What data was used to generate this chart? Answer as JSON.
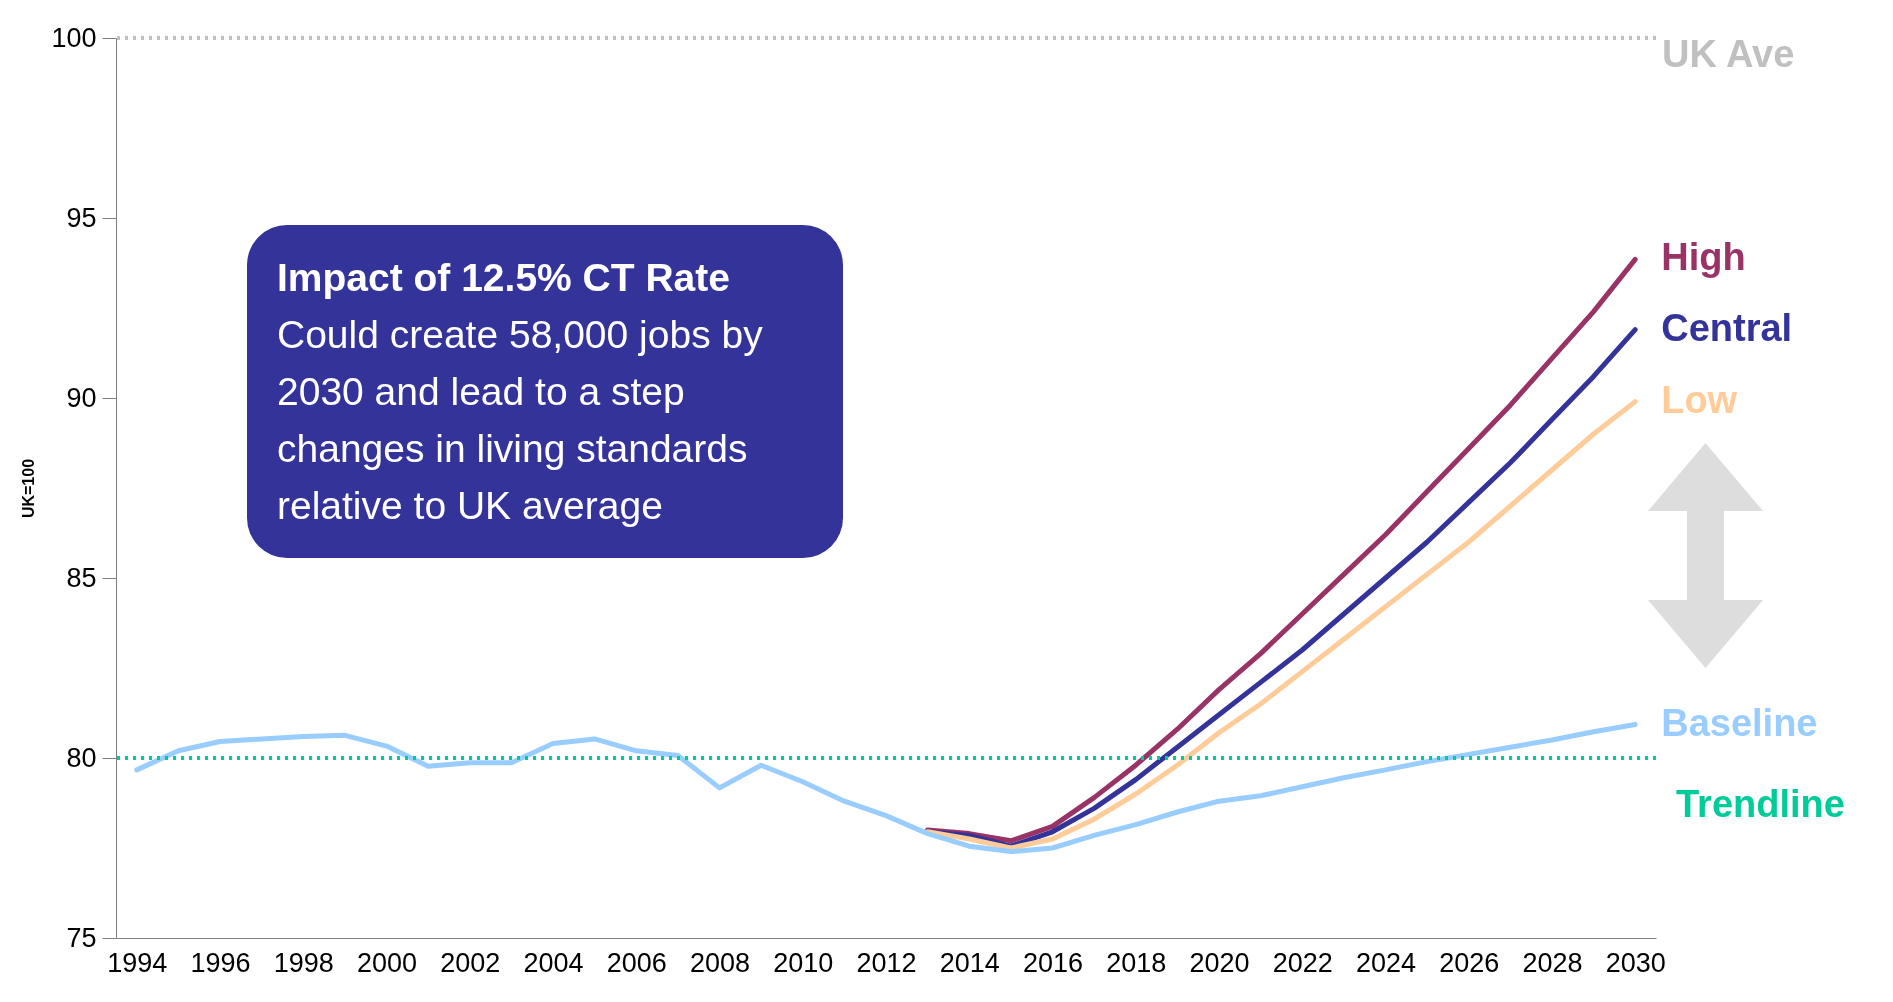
{
  "chart_data": {
    "type": "line",
    "ylabel": "UK=100",
    "categories": [
      "1994",
      null,
      "1996",
      null,
      "1998",
      null,
      "2000",
      null,
      "2002",
      null,
      "2004",
      null,
      "2006",
      null,
      "2008",
      null,
      "2010",
      null,
      "2012",
      null,
      "2014",
      null,
      "2016",
      null,
      "2018",
      null,
      "2020",
      null,
      "2022",
      null,
      "2024",
      null,
      "2026",
      null,
      "2028",
      null,
      "2030"
    ],
    "series": [
      {
        "name": "High",
        "color": "#993366",
        "values": [
          null,
          null,
          null,
          null,
          null,
          null,
          null,
          null,
          null,
          null,
          null,
          null,
          null,
          null,
          null,
          null,
          null,
          null,
          null,
          78.0,
          77.9,
          77.7,
          78.1,
          78.9,
          79.8,
          80.8,
          81.9,
          82.9,
          84.0,
          85.1,
          86.2,
          87.4,
          88.6,
          89.8,
          91.1,
          92.4,
          93.85
        ]
      },
      {
        "name": "Central",
        "color": "#333399",
        "values": [
          null,
          null,
          null,
          null,
          null,
          null,
          null,
          null,
          null,
          null,
          null,
          null,
          null,
          null,
          null,
          null,
          null,
          null,
          null,
          77.95,
          77.85,
          77.55,
          77.95,
          78.6,
          79.4,
          80.3,
          81.2,
          82.1,
          83.0,
          84.0,
          85.0,
          86.0,
          87.1,
          88.2,
          89.4,
          90.6,
          91.9
        ]
      },
      {
        "name": "Low",
        "color": "#ffcc99",
        "values": [
          null,
          null,
          null,
          null,
          null,
          null,
          null,
          null,
          null,
          null,
          null,
          null,
          null,
          null,
          null,
          null,
          null,
          null,
          null,
          77.95,
          77.75,
          77.5,
          77.75,
          78.3,
          79.0,
          79.8,
          80.7,
          81.5,
          82.4,
          83.3,
          84.2,
          85.1,
          86.0,
          87.0,
          88.0,
          89.0,
          89.9
        ]
      },
      {
        "name": "Baseline",
        "color": "#99ccff",
        "values": [
          79.67,
          80.2,
          80.46,
          80.53,
          80.6,
          80.63,
          80.33,
          79.77,
          79.87,
          79.87,
          80.4,
          80.53,
          80.2,
          80.07,
          79.17,
          79.8,
          79.34,
          78.8,
          78.4,
          77.9,
          77.55,
          77.4,
          77.5,
          77.85,
          78.15,
          78.5,
          78.8,
          78.95,
          79.2,
          79.45,
          79.67,
          79.9,
          80.1,
          80.3,
          80.5,
          80.73,
          80.93
        ]
      }
    ],
    "ylim": [
      75,
      100
    ],
    "yticks": [
      75,
      80,
      85,
      90,
      95,
      100
    ],
    "ref_lines": [
      {
        "axis": "y",
        "value": 100,
        "label": "UK Ave",
        "color": "#c0c0c0",
        "line_style": "dotted"
      },
      {
        "axis": "y",
        "value": 80,
        "label": "Trendline",
        "color": "#00cc99",
        "line_style": "dotted"
      }
    ],
    "annotations": [
      "Impact of 12.5% CT Rate",
      "Could create 58,000 jobs by 2030 and lead to a step changes in living standards relative to UK average"
    ]
  }
}
